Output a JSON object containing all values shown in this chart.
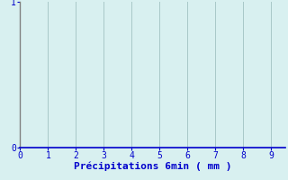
{
  "title": "",
  "xlabel": "Précipitations 6min ( mm )",
  "xlim": [
    0,
    9.5
  ],
  "ylim": [
    0,
    1
  ],
  "xticks": [
    0,
    1,
    2,
    3,
    4,
    5,
    6,
    7,
    8,
    9
  ],
  "yticks": [
    0,
    1
  ],
  "background_color": "#d8f0f0",
  "plot_bg_color": "#d8f0f0",
  "grid_color": "#a8c8c8",
  "label_color": "#0000cc",
  "tick_color": "#0000cc",
  "spine_left_color": "#808080",
  "spine_bottom_color": "#0000cc",
  "xlabel_fontsize": 8,
  "tick_fontsize": 7
}
